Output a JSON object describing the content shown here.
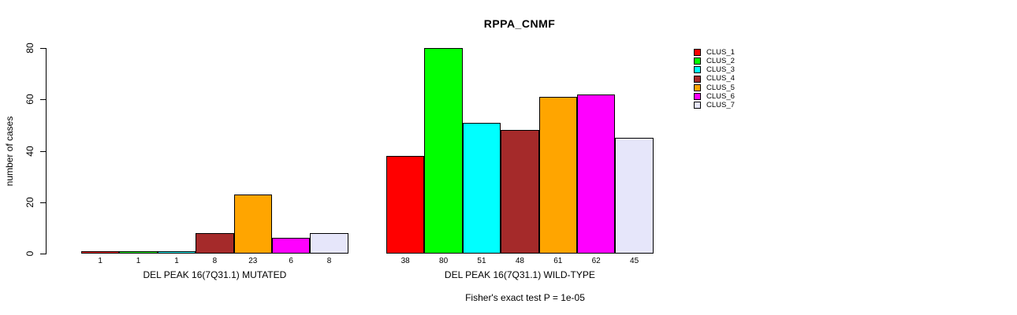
{
  "chart_data": {
    "type": "bar",
    "title": "RPPA_CNMF",
    "ylabel": "number of cases",
    "subtitle": "Fisher's exact test P = 1e-05",
    "ylim": [
      0,
      80
    ],
    "yticks": [
      0,
      20,
      40,
      60,
      80
    ],
    "grid": false,
    "legend_position": "right",
    "legend": [
      "CLUS_1",
      "CLUS_2",
      "CLUS_3",
      "CLUS_4",
      "CLUS_5",
      "CLUS_6",
      "CLUS_7"
    ],
    "colors": [
      "#FF0000",
      "#00FF00",
      "#00FFFF",
      "#A52A2A",
      "#FFA500",
      "#FF00FF",
      "#E6E6FA"
    ],
    "groups": [
      {
        "label": "DEL PEAK 16(7Q31.1) MUTATED",
        "categories": [
          "CLUS_1",
          "CLUS_2",
          "CLUS_3",
          "CLUS_4",
          "CLUS_5",
          "CLUS_6",
          "CLUS_7"
        ],
        "values": [
          1,
          1,
          1,
          8,
          23,
          6,
          8
        ]
      },
      {
        "label": "DEL PEAK 16(7Q31.1) WILD-TYPE",
        "categories": [
          "CLUS_1",
          "CLUS_2",
          "CLUS_3",
          "CLUS_4",
          "CLUS_5",
          "CLUS_6",
          "CLUS_7"
        ],
        "values": [
          38,
          80,
          51,
          48,
          61,
          62,
          45
        ]
      }
    ]
  }
}
